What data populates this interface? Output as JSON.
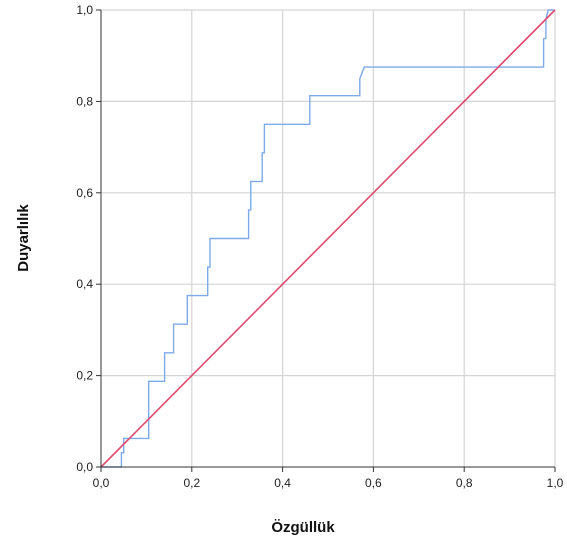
{
  "chart_data": {
    "type": "line",
    "xlabel": "Özgüllük",
    "ylabel": "Duyarlılık",
    "xlim": [
      0,
      1
    ],
    "ylim": [
      0,
      1
    ],
    "grid": true,
    "x_ticks": [
      "0,0",
      "0,2",
      "0,4",
      "0,6",
      "0,8",
      "1,0"
    ],
    "y_ticks": [
      "0,0",
      "0,2",
      "0,4",
      "0,6",
      "0,8",
      "1,0"
    ],
    "x_tick_values": [
      0,
      0.2,
      0.4,
      0.6,
      0.8,
      1.0
    ],
    "y_tick_values": [
      0,
      0.2,
      0.4,
      0.6,
      0.8,
      1.0
    ],
    "series": [
      {
        "color": "#7eaae8",
        "x": [
          0,
          0.045,
          0.045,
          0.05,
          0.05,
          0.105,
          0.105,
          0.14,
          0.14,
          0.16,
          0.16,
          0.19,
          0.19,
          0.235,
          0.235,
          0.24,
          0.24,
          0.325,
          0.325,
          0.33,
          0.33,
          0.355,
          0.355,
          0.36,
          0.36,
          0.46,
          0.46,
          0.57,
          0.57,
          0.58,
          0.975,
          0.975,
          0.98,
          0.98,
          0.985,
          1.0
        ],
        "y": [
          0,
          0,
          0.031,
          0.031,
          0.0625,
          0.0625,
          0.1875,
          0.1875,
          0.25,
          0.25,
          0.3125,
          0.3125,
          0.375,
          0.375,
          0.4375,
          0.4375,
          0.5,
          0.5,
          0.5625,
          0.5625,
          0.625,
          0.625,
          0.6875,
          0.6875,
          0.75,
          0.75,
          0.8125,
          0.8125,
          0.85,
          0.875,
          0.875,
          0.9375,
          0.9375,
          0.98,
          1.0,
          1.0
        ]
      },
      {
        "color": "#e04a6e",
        "x": [
          0,
          1
        ],
        "y": [
          0,
          1
        ]
      }
    ]
  }
}
